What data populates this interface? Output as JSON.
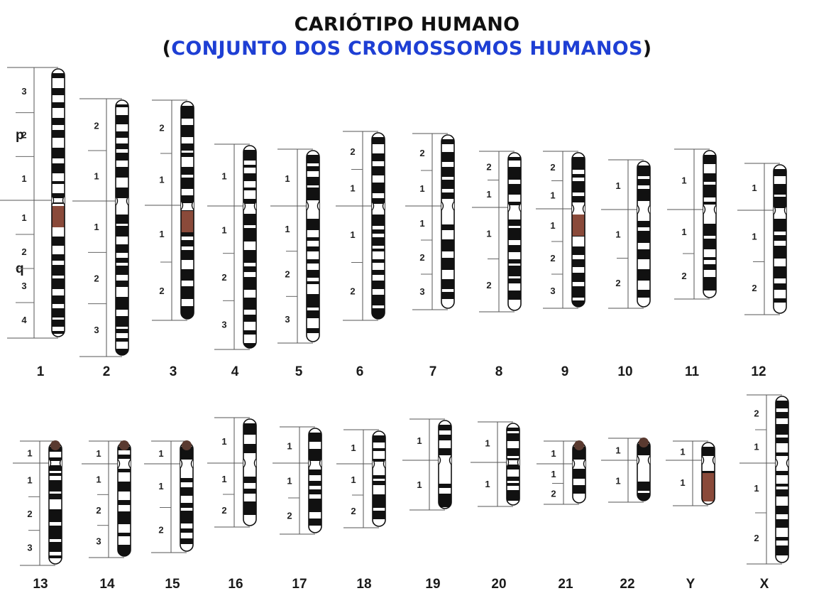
{
  "title": {
    "line1": "CARIÓTIPO HUMANO",
    "open_paren": "(",
    "line2": "CONJUNTO DOS CROMOSSOMOS HUMANOS",
    "close_paren": ")"
  },
  "arm_labels": {
    "p": "p",
    "q": "q"
  },
  "colors": {
    "accent_blue": "#1e3fd4",
    "band_dark": "#111111",
    "heterochromatin": "#8a4a3a"
  },
  "chromosomes": [
    {
      "label": "1",
      "p_regions": [
        "3",
        "2",
        "1"
      ],
      "q_regions": [
        "1",
        "2",
        "3",
        "4"
      ]
    },
    {
      "label": "2",
      "p_regions": [
        "2",
        "1"
      ],
      "q_regions": [
        "1",
        "2",
        "3"
      ]
    },
    {
      "label": "3",
      "p_regions": [
        "2",
        "1"
      ],
      "q_regions": [
        "1",
        "2"
      ]
    },
    {
      "label": "4",
      "p_regions": [
        "1"
      ],
      "q_regions": [
        "1",
        "2",
        "3"
      ]
    },
    {
      "label": "5",
      "p_regions": [
        "1"
      ],
      "q_regions": [
        "1",
        "2",
        "3"
      ]
    },
    {
      "label": "6",
      "p_regions": [
        "2",
        "1"
      ],
      "q_regions": [
        "1",
        "2"
      ]
    },
    {
      "label": "7",
      "p_regions": [
        "2",
        "1"
      ],
      "q_regions": [
        "1",
        "2",
        "3"
      ]
    },
    {
      "label": "8",
      "p_regions": [
        "2",
        "1"
      ],
      "q_regions": [
        "1",
        "2"
      ]
    },
    {
      "label": "9",
      "p_regions": [
        "2",
        "1"
      ],
      "q_regions": [
        "1",
        "2",
        "3"
      ]
    },
    {
      "label": "10",
      "p_regions": [
        "1"
      ],
      "q_regions": [
        "1",
        "2"
      ]
    },
    {
      "label": "11",
      "p_regions": [
        "1"
      ],
      "q_regions": [
        "1",
        "2"
      ]
    },
    {
      "label": "12",
      "p_regions": [
        "1"
      ],
      "q_regions": [
        "1",
        "2"
      ]
    },
    {
      "label": "13",
      "p_regions": [
        "1"
      ],
      "q_regions": [
        "1",
        "2",
        "3"
      ]
    },
    {
      "label": "14",
      "p_regions": [
        "1"
      ],
      "q_regions": [
        "1",
        "2",
        "3"
      ]
    },
    {
      "label": "15",
      "p_regions": [
        "1"
      ],
      "q_regions": [
        "1",
        "2"
      ]
    },
    {
      "label": "16",
      "p_regions": [
        "1"
      ],
      "q_regions": [
        "1",
        "2"
      ]
    },
    {
      "label": "17",
      "p_regions": [
        "1"
      ],
      "q_regions": [
        "1",
        "2"
      ]
    },
    {
      "label": "18",
      "p_regions": [
        "1"
      ],
      "q_regions": [
        "1",
        "2"
      ]
    },
    {
      "label": "19",
      "p_regions": [
        "1"
      ],
      "q_regions": [
        "1"
      ]
    },
    {
      "label": "20",
      "p_regions": [
        "1"
      ],
      "q_regions": [
        "1"
      ]
    },
    {
      "label": "21",
      "p_regions": [
        "1"
      ],
      "q_regions": [
        "1",
        "2"
      ]
    },
    {
      "label": "22",
      "p_regions": [
        "1"
      ],
      "q_regions": [
        "1"
      ]
    },
    {
      "label": "Y",
      "p_regions": [
        "1"
      ],
      "q_regions": [
        "1"
      ]
    },
    {
      "label": "X",
      "p_regions": [
        "2",
        "1"
      ],
      "q_regions": [
        "1",
        "2"
      ]
    }
  ]
}
